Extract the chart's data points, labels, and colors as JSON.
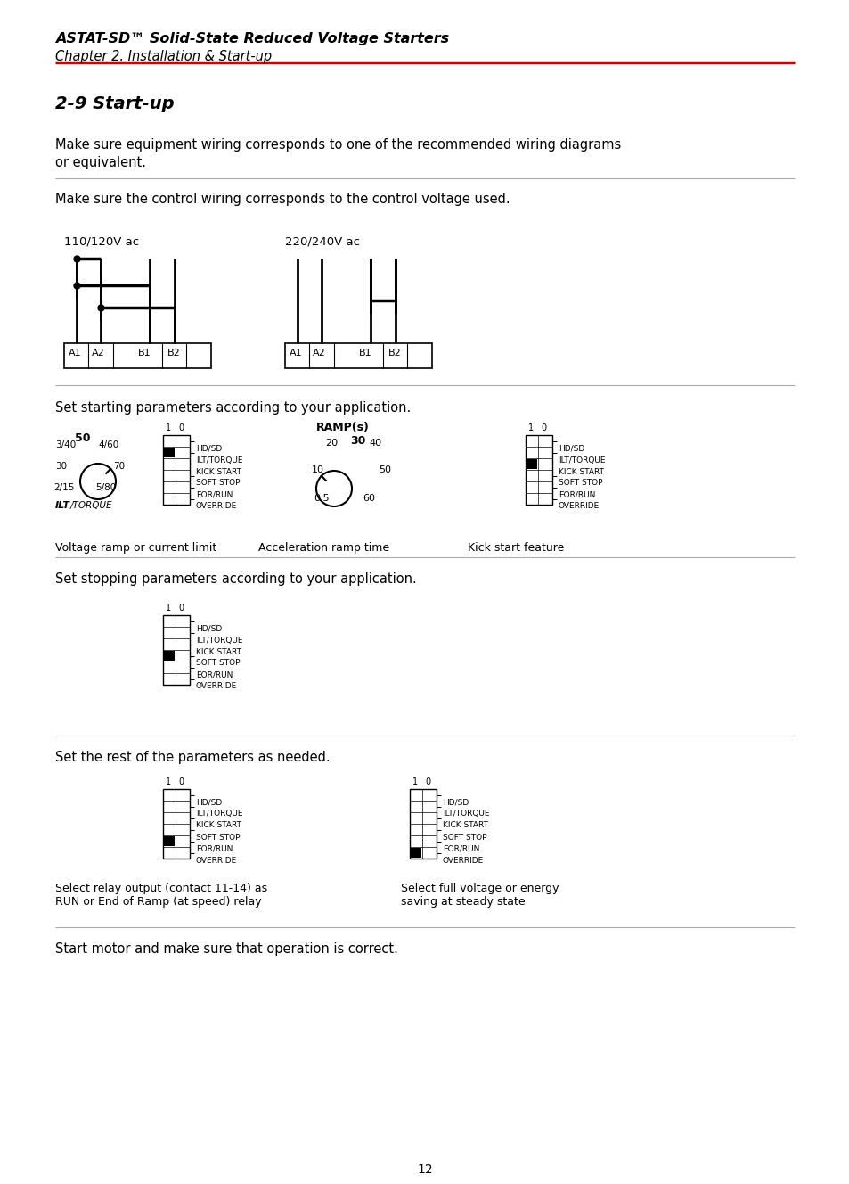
{
  "title_bold": "ASTAT-SD™ Solid-State Reduced Voltage Starters",
  "title_italic": "Chapter 2. Installation & Start-up",
  "section_title": "2-9 Start-up",
  "para1a": "Make sure equipment wiring corresponds to one of the recommended wiring diagrams",
  "para1b": "or equivalent.",
  "para2": "Make sure the control wiring corresponds to the control voltage used.",
  "para3": "Set starting parameters according to your application.",
  "para4": "Set stopping parameters according to your application.",
  "para5": "Set the rest of the parameters as needed.",
  "para6": "Start motor and make sure that operation is correct.",
  "label_110": "110/120V ac",
  "label_220": "220/240V ac",
  "label_ramp_title": "RAMP(s)",
  "label_volt_ramp": "Voltage ramp or current limit",
  "label_accel": "Acceleration ramp time",
  "label_kick": "Kick start feature",
  "label_relay": "Select relay output (contact 11-14) as",
  "label_relay2": "RUN or End of Ramp (at speed) relay",
  "label_full": "Select full voltage or energy",
  "label_full2": "saving at steady state",
  "page_num": "12",
  "red_color": "#cc0000",
  "black": "#000000",
  "bg_color": "#ffffff",
  "dip_labels": [
    "HD/SD",
    "ILT/TORQUE",
    "KICK START",
    "SOFT STOP",
    "EOR/RUN",
    "OVERRIDE"
  ]
}
